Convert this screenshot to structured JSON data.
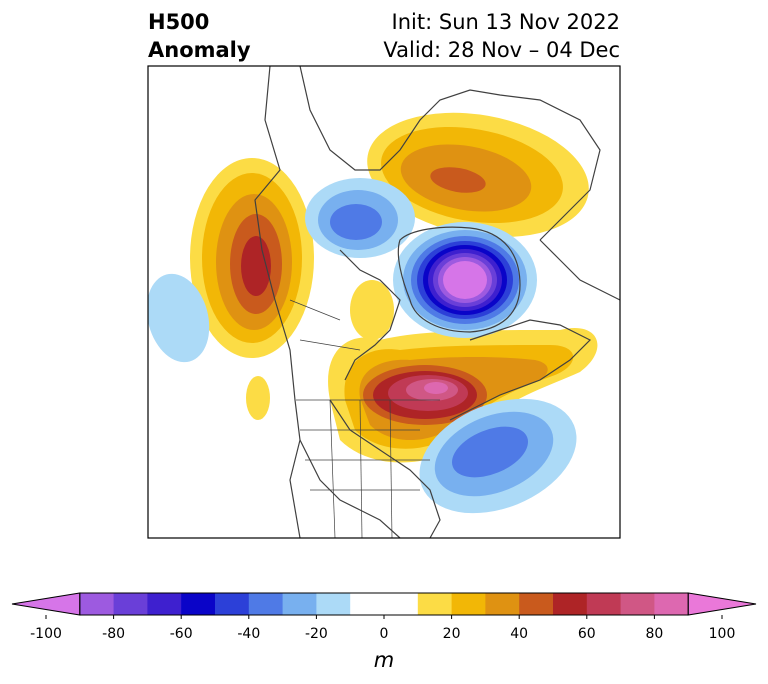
{
  "title": {
    "left_line1": "H500",
    "left_line2": "Anomaly",
    "right_line1": "Init: Sun 13 Nov 2022",
    "right_line2": "Valid: 28 Nov – 04 Dec"
  },
  "colorbar": {
    "unit": "m",
    "ticks": [
      "-100",
      "-80",
      "-60",
      "-40",
      "-20",
      "0",
      "20",
      "40",
      "60",
      "80",
      "100"
    ],
    "min": -100,
    "max": 100,
    "step": 10,
    "colors": [
      "#d675e8",
      "#9d5ae0",
      "#6a3fd8",
      "#3e20cf",
      "#0a04c8",
      "#2c40d8",
      "#4f7ae6",
      "#78b0ef",
      "#acdaf7",
      "#ffffff",
      "#ffffff",
      "#fcdc45",
      "#f2b706",
      "#df9212",
      "#c95a1d",
      "#ae2426",
      "#c03a55",
      "#d05785",
      "#dd68b0",
      "#ea78d9"
    ]
  },
  "map": {
    "features": [
      {
        "name": "ridge-alaska-west-canada",
        "anomaly_max_m": 60
      },
      {
        "name": "ridge-greenland",
        "anomaly_max_m": 50
      },
      {
        "name": "low-hudson-bay",
        "anomaly_min_m": -100
      },
      {
        "name": "low-north-canada",
        "anomaly_min_m": -40
      },
      {
        "name": "ridge-great-lakes-quebec",
        "anomaly_max_m": 80
      },
      {
        "name": "low-north-atlantic",
        "anomaly_min_m": -40
      },
      {
        "name": "low-north-pacific",
        "anomaly_min_m": -20
      }
    ]
  }
}
